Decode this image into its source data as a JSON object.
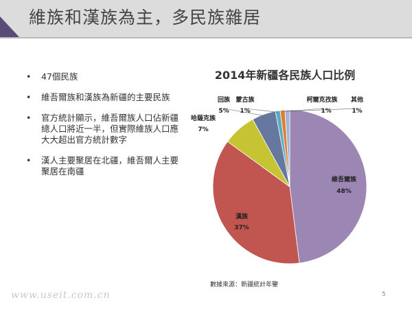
{
  "slide": {
    "title": "維族和漢族為主，多民族雜居",
    "bullets": [
      "47個民族",
      "維吾爾族和漢族為新疆的主要民族",
      "官方統計顯示，維吾爾族人口佔新疆總人口將近一半，但實際維族人口應大大超出官方統計數字",
      "漢人主要聚居在北疆，維吾爾人主要聚居在南疆"
    ],
    "bullet_symbol": "•",
    "source": "數據來源：新疆統計年鑒",
    "watermark": "www.useit.com.cn",
    "page_number": "5"
  },
  "chart_data": {
    "type": "pie",
    "title": "2014年新疆各民族人口比例",
    "slices": [
      {
        "name": "維吾爾族",
        "value": 48,
        "label": "48%",
        "color": "#9b86b4"
      },
      {
        "name": "漢族",
        "value": 37,
        "label": "37%",
        "color": "#c0564f"
      },
      {
        "name": "哈薩克族",
        "value": 7,
        "label": "7%",
        "color": "#c7c434"
      },
      {
        "name": "回族",
        "value": 5,
        "label": "5%",
        "color": "#66789f"
      },
      {
        "name": "蒙古族",
        "value": 1,
        "label": "1%",
        "color": "#5bacc2"
      },
      {
        "name": "柯爾克孜族",
        "value": 1,
        "label": "1%",
        "color": "#e07e36"
      },
      {
        "name": "其他",
        "value": 1,
        "label": "1%",
        "color": "#9fb6d6"
      }
    ]
  }
}
